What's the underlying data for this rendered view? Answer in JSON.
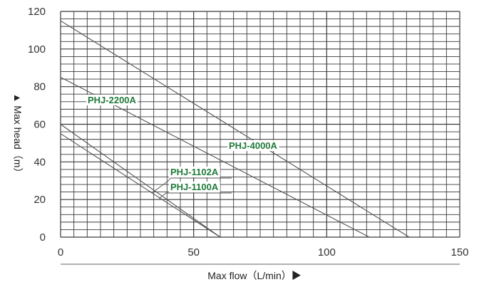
{
  "chart_data": {
    "type": "line",
    "title": "",
    "xlabel": "Max flow（L/min）▶",
    "ylabel": "▲ Max head（m）",
    "xlim": [
      0,
      150
    ],
    "ylim": [
      0,
      120
    ],
    "x_ticks": [
      "0",
      "50",
      "100",
      "150"
    ],
    "y_ticks": [
      "0",
      "20",
      "40",
      "60",
      "80",
      "100",
      "120"
    ],
    "grid": true,
    "line_color": "#555555",
    "label_color": "#1f7a3a",
    "series": [
      {
        "name": "PHJ-4000A",
        "points": [
          [
            0,
            115
          ],
          [
            131,
            0
          ]
        ]
      },
      {
        "name": "PHJ-2200A",
        "points": [
          [
            0,
            85
          ],
          [
            116,
            0
          ]
        ]
      },
      {
        "name": "PHJ-1102A",
        "points": [
          [
            0,
            60
          ],
          [
            60,
            0
          ]
        ]
      },
      {
        "name": "PHJ-1100A",
        "points": [
          [
            0,
            55
          ],
          [
            60,
            0
          ]
        ]
      }
    ]
  }
}
